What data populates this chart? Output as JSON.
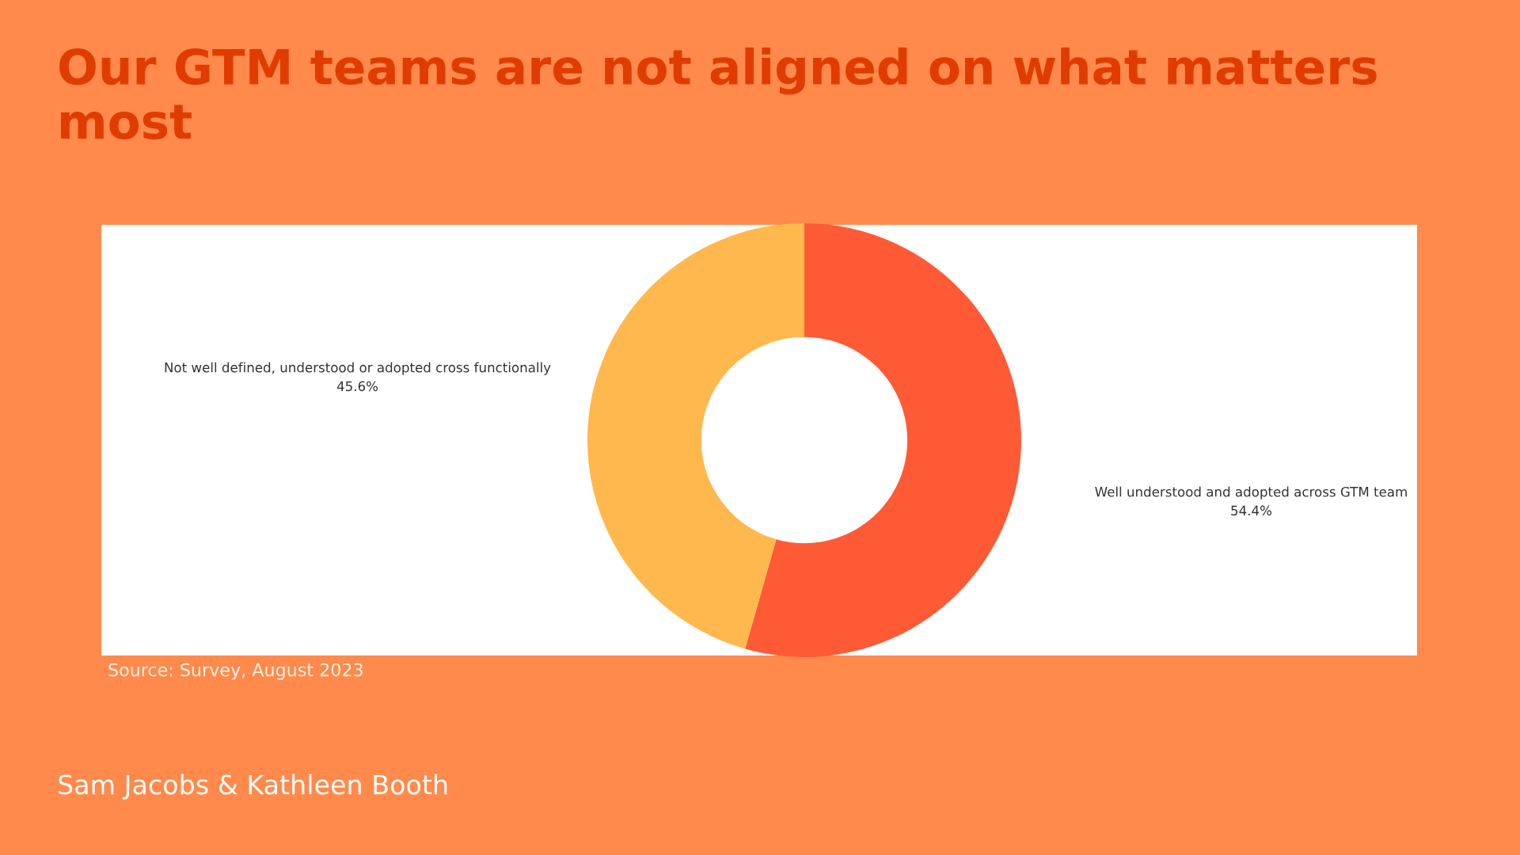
{
  "chart_data": {
    "type": "donut",
    "title": "Our GTM teams are not aligned on what matters most",
    "categories": [
      "Well understood and adopted across GTM team",
      "Not well defined, understood or adopted cross functionally"
    ],
    "values": [
      54.4,
      45.6
    ],
    "value_labels": [
      "54.4%",
      "45.6%"
    ],
    "colors": [
      "#ff5a36",
      "#ffb84d"
    ],
    "annotations": [
      "Source: Survey, August 2023",
      "Sam Jacobs & Kathleen Booth"
    ]
  }
}
